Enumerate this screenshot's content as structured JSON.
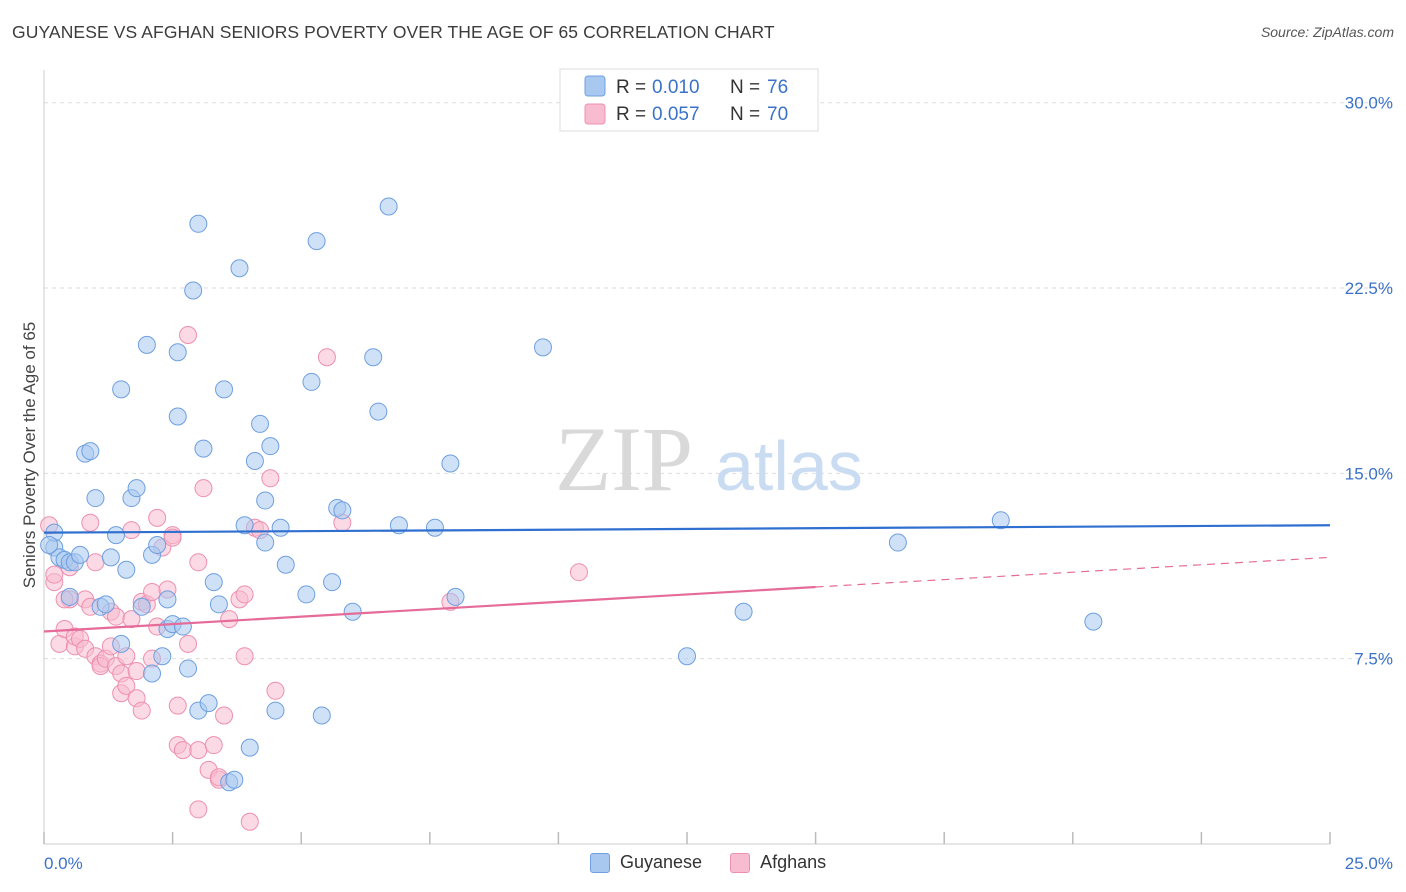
{
  "title": "GUYANESE VS AFGHAN SENIORS POVERTY OVER THE AGE OF 65 CORRELATION CHART",
  "source": "Source: ZipAtlas.com",
  "watermark": {
    "zip": "ZIP",
    "atlas": "atlas"
  },
  "colors": {
    "guyanese_fill": "#a8c8f0",
    "guyanese_stroke": "#6f9fe0",
    "guyanese_line": "#2f6fd0",
    "afghans_fill": "#f8bcd0",
    "afghans_stroke": "#ee8fb0",
    "afghans_line": "#e56b98",
    "axis_text": "#3b72c8",
    "grid": "#dddddd"
  },
  "legend_top": [
    {
      "r_label": "R = ",
      "r_value": "0.010",
      "n_label": "N = ",
      "n_value": "76"
    },
    {
      "r_label": "R = ",
      "r_value": "0.057",
      "n_label": "N = ",
      "n_value": "70"
    }
  ],
  "legend_bottom": [
    "Guyanese",
    "Afghans"
  ],
  "chart_data": {
    "type": "scatter",
    "title": "GUYANESE VS AFGHAN SENIORS POVERTY OVER THE AGE OF 65 CORRELATION CHART",
    "xlabel": "",
    "ylabel": "Seniors Poverty Over the Age of 65",
    "xlim": [
      0,
      25
    ],
    "ylim": [
      0,
      31
    ],
    "x_tick_labels": [
      "0.0%",
      "25.0%"
    ],
    "y_ticks": [
      7.5,
      15.0,
      22.5,
      30.0
    ],
    "y_tick_labels": [
      "7.5%",
      "15.0%",
      "22.5%",
      "30.0%"
    ],
    "grid": true,
    "legend_position": "top-center",
    "series": [
      {
        "name": "Guyanese",
        "r": 0.01,
        "n": 76,
        "trend": {
          "x": [
            0,
            25
          ],
          "y": [
            12.6,
            12.9
          ],
          "solid_until": 25
        },
        "points": [
          [
            0.2,
            12.0
          ],
          [
            0.2,
            12.6
          ],
          [
            0.3,
            11.6
          ],
          [
            0.4,
            11.5
          ],
          [
            0.5,
            10.0
          ],
          [
            0.5,
            11.4
          ],
          [
            0.6,
            11.4
          ],
          [
            0.7,
            11.7
          ],
          [
            0.8,
            15.8
          ],
          [
            0.9,
            15.9
          ],
          [
            1.0,
            14.0
          ],
          [
            1.1,
            9.6
          ],
          [
            1.2,
            9.7
          ],
          [
            1.3,
            11.6
          ],
          [
            1.4,
            12.5
          ],
          [
            1.5,
            8.1
          ],
          [
            1.5,
            18.4
          ],
          [
            1.6,
            11.1
          ],
          [
            1.7,
            14.0
          ],
          [
            1.8,
            14.4
          ],
          [
            1.9,
            9.6
          ],
          [
            2.0,
            20.2
          ],
          [
            2.1,
            11.7
          ],
          [
            2.1,
            6.9
          ],
          [
            2.2,
            12.1
          ],
          [
            2.3,
            7.6
          ],
          [
            2.4,
            8.7
          ],
          [
            2.4,
            9.9
          ],
          [
            2.5,
            8.9
          ],
          [
            2.6,
            19.9
          ],
          [
            2.6,
            17.3
          ],
          [
            2.7,
            8.8
          ],
          [
            2.8,
            7.1
          ],
          [
            2.9,
            22.4
          ],
          [
            3.0,
            25.1
          ],
          [
            3.0,
            5.4
          ],
          [
            3.1,
            16.0
          ],
          [
            3.2,
            5.7
          ],
          [
            3.3,
            10.6
          ],
          [
            3.4,
            9.7
          ],
          [
            3.5,
            18.4
          ],
          [
            3.6,
            2.5
          ],
          [
            3.7,
            2.6
          ],
          [
            3.8,
            23.3
          ],
          [
            4.1,
            15.5
          ],
          [
            4.2,
            17.0
          ],
          [
            4.3,
            12.2
          ],
          [
            4.3,
            13.9
          ],
          [
            4.0,
            3.9
          ],
          [
            3.9,
            12.9
          ],
          [
            4.4,
            16.1
          ],
          [
            4.5,
            5.4
          ],
          [
            4.6,
            12.8
          ],
          [
            4.7,
            11.3
          ],
          [
            5.1,
            10.1
          ],
          [
            5.2,
            18.7
          ],
          [
            5.3,
            24.4
          ],
          [
            5.4,
            5.2
          ],
          [
            5.6,
            10.6
          ],
          [
            5.7,
            13.6
          ],
          [
            5.8,
            13.5
          ],
          [
            6.0,
            9.4
          ],
          [
            6.4,
            19.7
          ],
          [
            6.5,
            17.5
          ],
          [
            6.7,
            25.8
          ],
          [
            6.9,
            12.9
          ],
          [
            7.6,
            12.8
          ],
          [
            7.9,
            15.4
          ],
          [
            8.0,
            10.0
          ],
          [
            9.7,
            20.1
          ],
          [
            12.5,
            7.6
          ],
          [
            13.6,
            9.4
          ],
          [
            16.6,
            12.2
          ],
          [
            18.6,
            13.1
          ],
          [
            20.4,
            9.0
          ],
          [
            0.1,
            12.1
          ]
        ]
      },
      {
        "name": "Afghans",
        "r": 0.057,
        "n": 70,
        "trend": {
          "x": [
            0,
            25
          ],
          "y": [
            8.6,
            11.6
          ],
          "solid_until": 15
        },
        "points": [
          [
            0.1,
            12.9
          ],
          [
            0.2,
            10.6
          ],
          [
            0.2,
            10.9
          ],
          [
            0.3,
            8.1
          ],
          [
            0.4,
            8.7
          ],
          [
            0.5,
            9.9
          ],
          [
            0.5,
            11.2
          ],
          [
            0.6,
            8.0
          ],
          [
            0.6,
            8.4
          ],
          [
            0.7,
            8.3
          ],
          [
            0.8,
            7.9
          ],
          [
            0.8,
            9.9
          ],
          [
            0.9,
            9.6
          ],
          [
            0.9,
            13.0
          ],
          [
            1.0,
            11.4
          ],
          [
            1.0,
            7.6
          ],
          [
            1.1,
            7.3
          ],
          [
            1.1,
            7.2
          ],
          [
            1.2,
            7.5
          ],
          [
            1.3,
            9.4
          ],
          [
            1.3,
            8.0
          ],
          [
            1.4,
            7.2
          ],
          [
            1.4,
            9.2
          ],
          [
            1.5,
            6.9
          ],
          [
            1.5,
            6.1
          ],
          [
            1.6,
            6.4
          ],
          [
            1.6,
            7.6
          ],
          [
            1.7,
            12.7
          ],
          [
            1.8,
            7.0
          ],
          [
            1.8,
            5.9
          ],
          [
            1.9,
            5.4
          ],
          [
            1.9,
            9.8
          ],
          [
            2.0,
            9.7
          ],
          [
            2.1,
            10.2
          ],
          [
            2.1,
            7.5
          ],
          [
            2.2,
            13.2
          ],
          [
            2.3,
            12.0
          ],
          [
            2.4,
            10.3
          ],
          [
            2.5,
            12.5
          ],
          [
            2.5,
            12.4
          ],
          [
            2.6,
            5.6
          ],
          [
            2.6,
            4.0
          ],
          [
            2.7,
            3.8
          ],
          [
            2.8,
            8.1
          ],
          [
            2.8,
            20.6
          ],
          [
            3.0,
            11.4
          ],
          [
            3.0,
            3.8
          ],
          [
            3.1,
            14.4
          ],
          [
            3.2,
            3.0
          ],
          [
            3.3,
            4.0
          ],
          [
            3.4,
            2.6
          ],
          [
            3.4,
            2.7
          ],
          [
            3.5,
            5.2
          ],
          [
            3.6,
            9.1
          ],
          [
            3.8,
            9.9
          ],
          [
            3.9,
            10.1
          ],
          [
            3.9,
            7.6
          ],
          [
            4.1,
            12.8
          ],
          [
            4.2,
            12.7
          ],
          [
            4.4,
            14.8
          ],
          [
            4.5,
            6.2
          ],
          [
            5.5,
            19.7
          ],
          [
            5.8,
            13.0
          ],
          [
            7.9,
            9.8
          ],
          [
            10.4,
            11.0
          ],
          [
            3.0,
            1.4
          ],
          [
            4.0,
            0.9
          ],
          [
            2.2,
            8.8
          ],
          [
            1.7,
            9.1
          ],
          [
            0.4,
            9.9
          ]
        ]
      }
    ]
  }
}
